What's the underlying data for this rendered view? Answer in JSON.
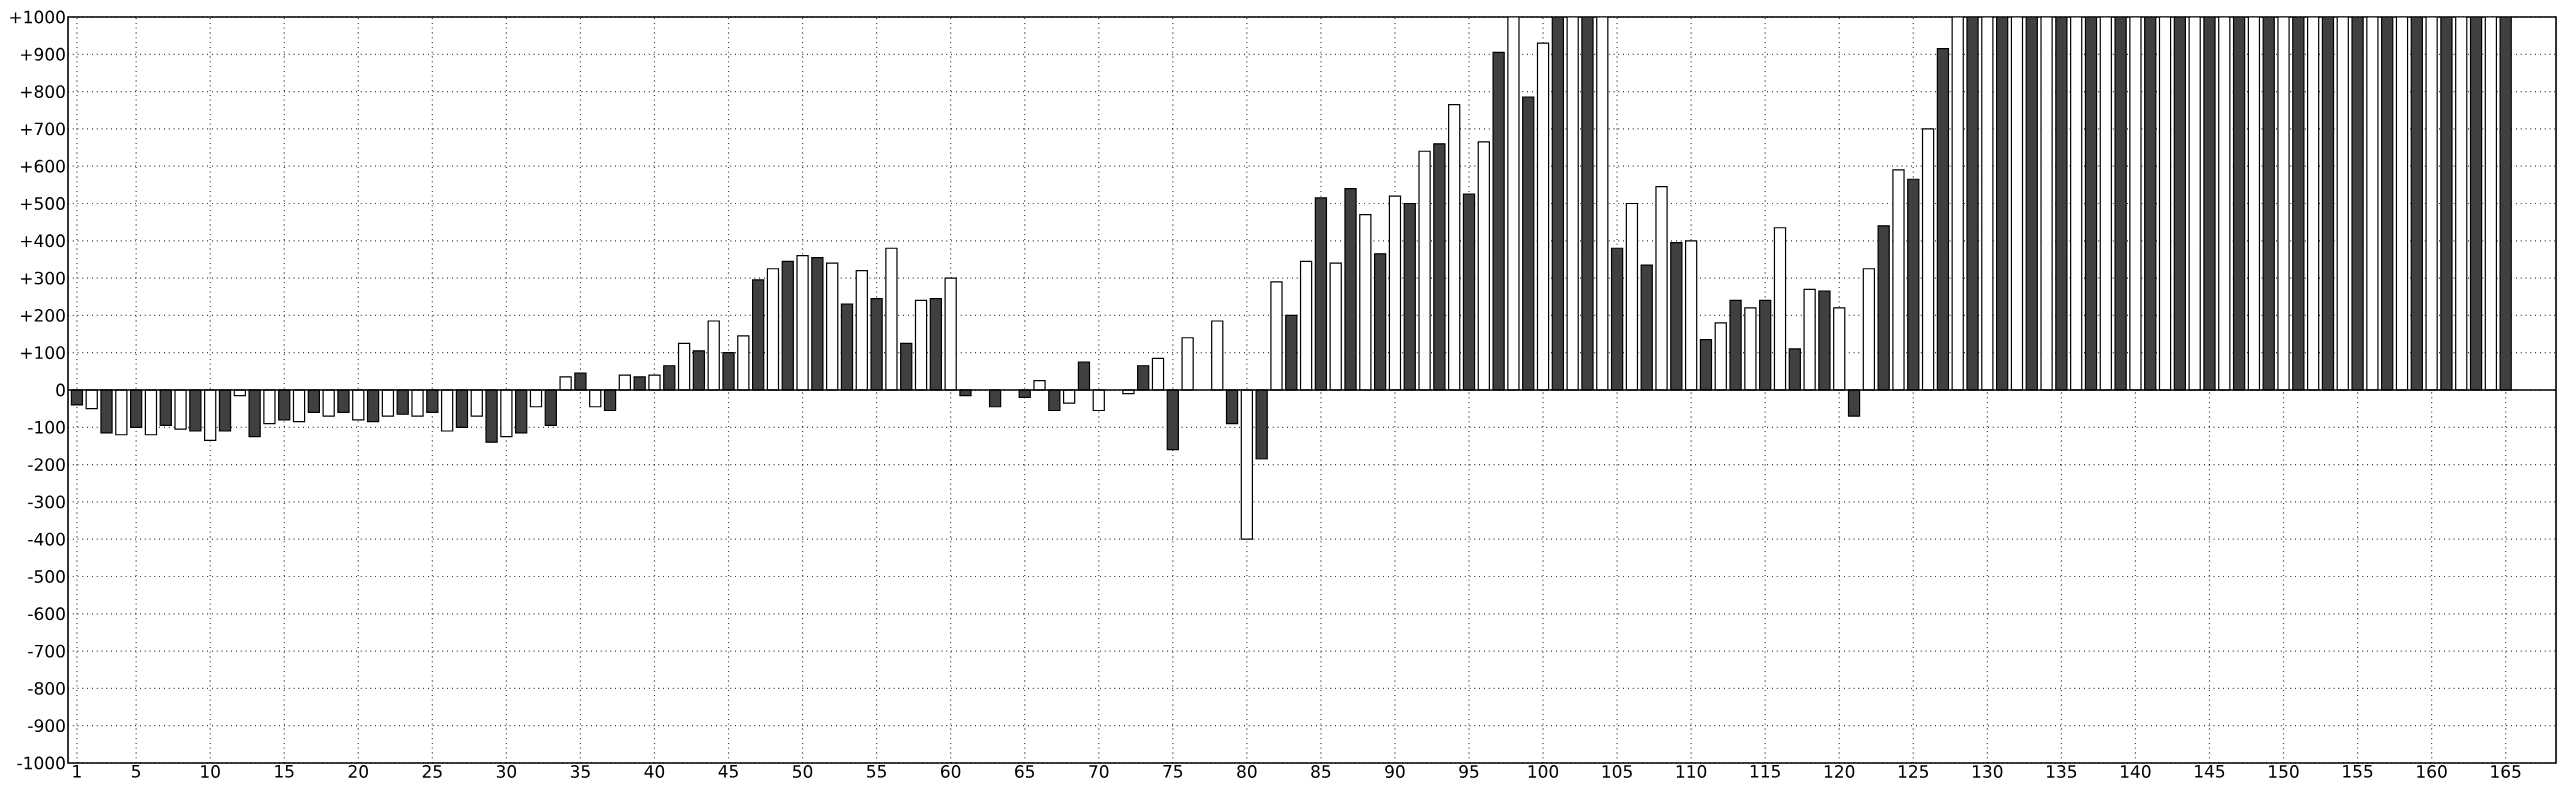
{
  "chart_data": {
    "type": "bar",
    "xlim": [
      0.4,
      168.4
    ],
    "xticks": [
      1,
      5,
      10,
      15,
      20,
      25,
      30,
      35,
      40,
      45,
      50,
      55,
      60,
      65,
      70,
      75,
      80,
      85,
      90,
      95,
      100,
      105,
      110,
      115,
      120,
      125,
      130,
      135,
      140,
      145,
      150,
      155,
      160,
      165
    ],
    "ylim": [
      -1000,
      1000
    ],
    "yticks": [
      {
        "value": -1000,
        "label": "-1000"
      },
      {
        "value": -900,
        "label": "-900"
      },
      {
        "value": -800,
        "label": "-800"
      },
      {
        "value": -700,
        "label": "-700"
      },
      {
        "value": -600,
        "label": "-600"
      },
      {
        "value": -500,
        "label": "-500"
      },
      {
        "value": -400,
        "label": "-400"
      },
      {
        "value": -300,
        "label": "-300"
      },
      {
        "value": -200,
        "label": "-200"
      },
      {
        "value": -100,
        "label": "-100"
      },
      0,
      {
        "value": 100,
        "label": "+100"
      },
      {
        "value": 200,
        "label": "+200"
      },
      {
        "value": 300,
        "label": "+300"
      },
      {
        "value": 400,
        "label": "+400"
      },
      {
        "value": 500,
        "label": "+500"
      },
      {
        "value": 600,
        "label": "+600"
      },
      {
        "value": 700,
        "label": "+700"
      },
      {
        "value": 800,
        "label": "+800"
      },
      {
        "value": 900,
        "label": "+900"
      },
      {
        "value": 1000,
        "label": "+1000"
      }
    ],
    "grid": true,
    "series": [
      {
        "color": "#404040",
        "x": [
          1,
          3,
          5,
          7,
          9,
          11,
          13,
          15,
          17,
          19,
          21,
          23,
          25,
          27,
          29,
          31,
          33,
          35,
          37,
          39,
          41,
          43,
          45,
          47,
          49,
          51,
          53,
          55,
          57,
          59,
          61,
          63,
          65,
          67,
          69,
          71,
          73,
          75,
          77,
          79,
          81,
          83,
          85,
          87,
          89,
          91,
          93,
          95,
          97,
          99,
          101,
          103,
          105,
          107,
          109,
          111,
          113,
          115,
          117,
          119,
          121,
          123,
          125,
          127,
          129,
          131,
          133,
          135,
          137,
          139,
          141,
          143,
          145,
          147,
          149,
          151,
          153,
          155,
          157,
          159,
          161,
          163,
          165
        ],
        "values": [
          -40,
          -115,
          -100,
          -95,
          -110,
          -110,
          -125,
          -80,
          -60,
          -60,
          -85,
          -65,
          -60,
          -100,
          -140,
          -115,
          -95,
          45,
          -55,
          35,
          65,
          105,
          100,
          295,
          345,
          355,
          230,
          245,
          125,
          245,
          -15,
          -45,
          -20,
          -55,
          75,
          null,
          65,
          -160,
          null,
          -90,
          -185,
          200,
          515,
          540,
          365,
          500,
          660,
          525,
          905,
          785,
          1000,
          1000,
          380,
          335,
          395,
          135,
          240,
          240,
          110,
          265,
          -70,
          440,
          565,
          915,
          1000,
          1000,
          1000,
          1000,
          1000,
          1000,
          1000,
          1000,
          1000,
          1000,
          1000,
          1000,
          1000,
          1000,
          1000,
          1000,
          1000,
          1000,
          1000
        ]
      },
      {
        "color": "#ffffff",
        "x": [
          2,
          4,
          6,
          8,
          10,
          12,
          14,
          16,
          18,
          20,
          22,
          24,
          26,
          28,
          30,
          32,
          34,
          36,
          38,
          40,
          42,
          44,
          46,
          48,
          50,
          52,
          54,
          56,
          58,
          60,
          62,
          64,
          66,
          68,
          70,
          72,
          74,
          76,
          78,
          80,
          82,
          84,
          86,
          88,
          90,
          92,
          94,
          96,
          98,
          100,
          102,
          104,
          106,
          108,
          110,
          112,
          114,
          116,
          118,
          120,
          122,
          124,
          126,
          128,
          130,
          132,
          134,
          136,
          138,
          140,
          142,
          144,
          146,
          148,
          150,
          152,
          154,
          156,
          158,
          160,
          162,
          164
        ],
        "values": [
          -50,
          -120,
          -120,
          -105,
          -135,
          -15,
          -90,
          -85,
          -70,
          -80,
          -70,
          -70,
          -110,
          -70,
          -125,
          -45,
          35,
          -45,
          40,
          40,
          125,
          185,
          145,
          325,
          360,
          340,
          320,
          380,
          240,
          300,
          null,
          null,
          25,
          -35,
          -55,
          -10,
          85,
          140,
          185,
          -400,
          290,
          345,
          340,
          470,
          520,
          640,
          765,
          665,
          1000,
          930,
          1000,
          1000,
          500,
          545,
          400,
          180,
          220,
          435,
          270,
          220,
          325,
          590,
          700,
          1000,
          1000,
          1000,
          1000,
          1000,
          1000,
          1000,
          1000,
          1000,
          1000,
          1000,
          1000,
          1000,
          1000,
          1000,
          1000,
          1000,
          1000,
          1000
        ]
      }
    ]
  }
}
